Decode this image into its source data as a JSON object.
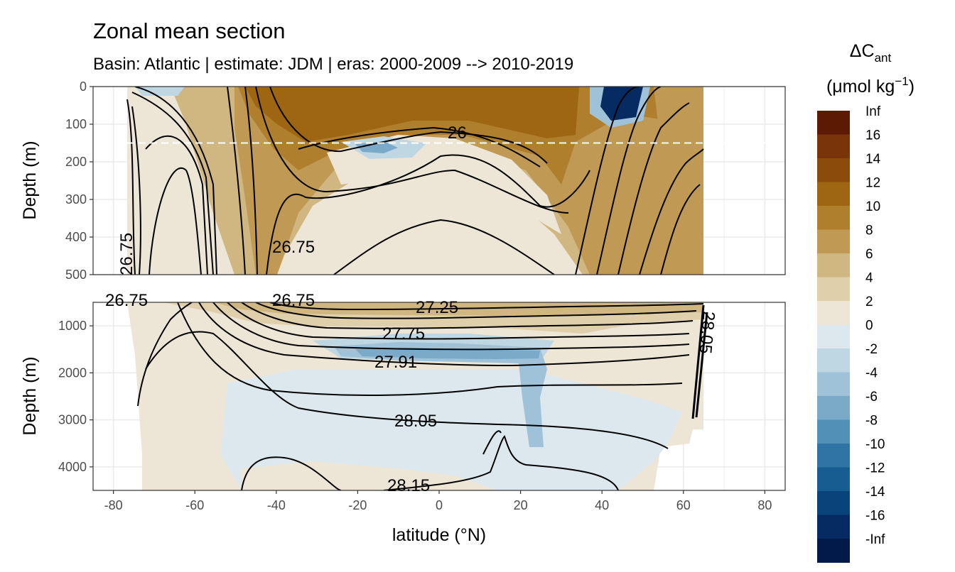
{
  "chart_data": {
    "type": "heatmap",
    "title": "Zonal mean section",
    "subtitle": "Basin: Atlantic | estimate: JDM  | eras: 2000-2009 --> 2010-2019",
    "xlabel": "latitude (°N)",
    "x_ticks": [
      "-80",
      "-60",
      "-40",
      "-20",
      "0",
      "20",
      "40",
      "60",
      "80"
    ],
    "xlim": [
      -85,
      85
    ],
    "panels": [
      {
        "name": "upper",
        "ylabel": "Depth (m)",
        "ylim": [
          500,
          0
        ],
        "y_ticks": [
          "0",
          "100",
          "200",
          "300",
          "400",
          "500"
        ],
        "reference_line_depth": 150
      },
      {
        "name": "lower",
        "ylabel": "Depth (m)",
        "ylim": [
          4500,
          500
        ],
        "y_ticks": [
          "1000",
          "2000",
          "3000",
          "4000"
        ]
      }
    ],
    "contour_labels": [
      "26",
      "26.75",
      "26.75",
      "26.75",
      "26.75",
      "27.25",
      "27.75",
      "27.91",
      "28.05",
      "28.15",
      "28.05"
    ],
    "legend": {
      "title_main": "ΔC",
      "title_sub": "ant",
      "units_open": "(μmol kg",
      "units_sup": "−1",
      "units_close": ")",
      "labels": [
        "Inf",
        "16",
        "14",
        "12",
        "10",
        "8",
        "6",
        "4",
        "2",
        "0",
        "-2",
        "-4",
        "-6",
        "-8",
        "-10",
        "-12",
        "-14",
        "-16",
        "-Inf"
      ],
      "colors": [
        "#5c1a05",
        "#7a3409",
        "#8b4c0b",
        "#9e6613",
        "#b07f2d",
        "#c09a55",
        "#d0b680",
        "#e0cfab",
        "#ede5d6",
        "#dde8ee",
        "#bfd6e3",
        "#9fc2d8",
        "#7aaac8",
        "#5390b8",
        "#2f74a4",
        "#175d91",
        "#0a4379",
        "#052b62",
        "#021a4a"
      ]
    }
  }
}
